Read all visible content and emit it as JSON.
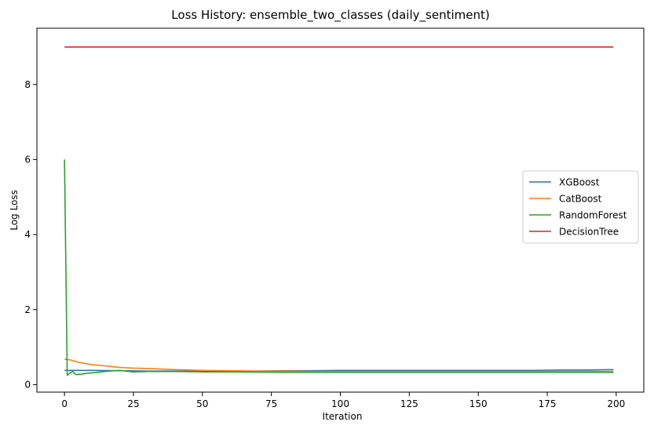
{
  "chart_data": {
    "type": "line",
    "title": "Loss History: ensemble_two_classes (daily_sentiment)",
    "xlabel": "Iteration",
    "ylabel": "Log Loss",
    "xlim": [
      -10,
      210
    ],
    "ylim": [
      -0.2,
      9.5
    ],
    "xticks": [
      0,
      25,
      50,
      75,
      100,
      125,
      150,
      175,
      200
    ],
    "yticks": [
      0,
      2,
      4,
      6,
      8
    ],
    "grid": false,
    "legend_position": "center-right",
    "series": [
      {
        "name": "XGBoost",
        "color": "#1f77b4",
        "x": [
          0,
          10,
          20,
          30,
          40,
          50,
          60,
          70,
          80,
          90,
          100,
          110,
          120,
          130,
          140,
          150,
          160,
          170,
          180,
          190,
          199
        ],
        "y": [
          0.38,
          0.38,
          0.37,
          0.36,
          0.36,
          0.36,
          0.36,
          0.36,
          0.37,
          0.37,
          0.38,
          0.38,
          0.38,
          0.38,
          0.38,
          0.38,
          0.38,
          0.38,
          0.39,
          0.39,
          0.4
        ]
      },
      {
        "name": "CatBoost",
        "color": "#ff7f0e",
        "x": [
          0,
          2,
          5,
          10,
          15,
          20,
          25,
          30,
          40,
          50,
          60,
          70,
          80,
          90,
          100,
          120,
          140,
          160,
          180,
          199
        ],
        "y": [
          0.68,
          0.66,
          0.6,
          0.53,
          0.5,
          0.46,
          0.44,
          0.43,
          0.4,
          0.38,
          0.37,
          0.36,
          0.36,
          0.35,
          0.35,
          0.35,
          0.35,
          0.35,
          0.35,
          0.35
        ]
      },
      {
        "name": "RandomForest",
        "color": "#2ca02c",
        "x": [
          0,
          1,
          2,
          3,
          4,
          6,
          8,
          12,
          16,
          20,
          25,
          30,
          40,
          50,
          60,
          80,
          100,
          120,
          140,
          160,
          180,
          199
        ],
        "y": [
          6.0,
          0.25,
          0.31,
          0.35,
          0.27,
          0.28,
          0.3,
          0.33,
          0.36,
          0.38,
          0.34,
          0.35,
          0.35,
          0.34,
          0.34,
          0.33,
          0.33,
          0.33,
          0.33,
          0.33,
          0.33,
          0.33
        ]
      },
      {
        "name": "DecisionTree",
        "color": "#d62728",
        "x": [
          0,
          199
        ],
        "y": [
          9.0,
          9.0
        ]
      }
    ]
  }
}
